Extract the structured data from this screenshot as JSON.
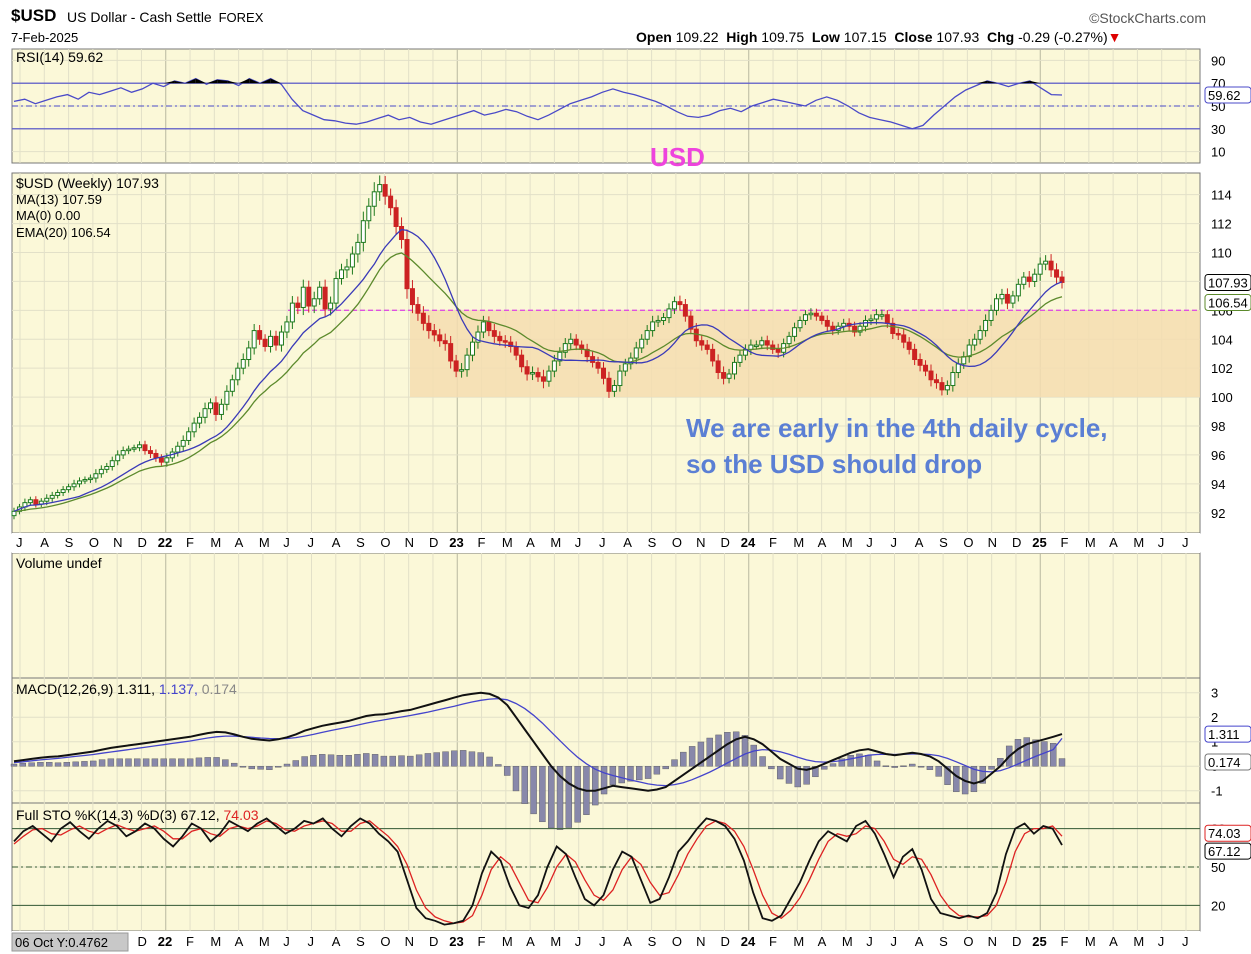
{
  "header": {
    "symbol": "$USD",
    "description": "US Dollar - Cash Settle",
    "exchange": "FOREX",
    "date": "7-Feb-2025",
    "brand": "©StockCharts.com",
    "open_label": "Open",
    "open": "109.22",
    "high_label": "High",
    "high": "109.75",
    "low_label": "Low",
    "low": "107.15",
    "close_label": "Close",
    "close": "107.93",
    "chg_label": "Chg",
    "chg": "-0.29 (-0.27%)"
  },
  "annotations": {
    "usd_label": "USD",
    "comment_line1": "We are early in the 4th daily cycle,",
    "comment_line2": "so the USD should drop",
    "usd_color": "#ee44dd",
    "comment_color": "#5b7fd4",
    "status_box": "06 Oct Y:0.4762"
  },
  "x_axis_labels": [
    "J",
    "A",
    "S",
    "O",
    "N",
    "D",
    "22",
    "F",
    "M",
    "A",
    "M",
    "J",
    "J",
    "A",
    "S",
    "O",
    "N",
    "D",
    "23",
    "F",
    "M",
    "A",
    "M",
    "J",
    "J",
    "A",
    "S",
    "O",
    "N",
    "D",
    "24",
    "F",
    "M",
    "A",
    "M",
    "J",
    "J",
    "A",
    "S",
    "O",
    "N",
    "D",
    "25",
    "F",
    "M",
    "A",
    "M",
    "J",
    "J"
  ],
  "bottom_axis_labels": [
    "D",
    "22",
    "F",
    "M",
    "A",
    "M",
    "J",
    "J",
    "A",
    "S",
    "O",
    "N",
    "D",
    "23",
    "F",
    "M",
    "A",
    "M",
    "J",
    "J",
    "A",
    "S",
    "O",
    "N",
    "D",
    "24",
    "F",
    "M",
    "A",
    "M",
    "J",
    "J",
    "A",
    "S",
    "O",
    "N",
    "D",
    "25",
    "F",
    "M",
    "A",
    "M",
    "J",
    "J"
  ],
  "colors": {
    "panel_bg": "#fbf8d8",
    "zone": "#f5ddb0",
    "price_up": "#1e7a1e",
    "price_down": "#cc2222",
    "ma13": "#3a3ab8",
    "ema20": "#5c8a2c",
    "rsi_line": "#4a4ac8",
    "sto_k": "#111111",
    "sto_d": "#dd2222",
    "macd_line": "#111111",
    "macd_signal": "#4444cc",
    "macd_hist": "#8888aa",
    "resistance": "#e050e0"
  },
  "chart_data": [
    {
      "type": "line",
      "title": "RSI(14) 59.62",
      "ylim": [
        0,
        100
      ],
      "yticks": [
        90,
        70,
        50,
        30,
        10
      ],
      "last_value_label": "59.62",
      "series": [
        {
          "name": "RSI(14)",
          "values": [
            54,
            56,
            52,
            55,
            58,
            60,
            56,
            62,
            60,
            63,
            66,
            62,
            65,
            70,
            67,
            72,
            70,
            74,
            69,
            73,
            72,
            68,
            74,
            70,
            74,
            69,
            56,
            46,
            42,
            38,
            37,
            35,
            34,
            36,
            39,
            42,
            38,
            40,
            36,
            34,
            37,
            40,
            43,
            46,
            42,
            44,
            47,
            45,
            41,
            38,
            42,
            47,
            52,
            55,
            58,
            62,
            65,
            62,
            60,
            57,
            54,
            50,
            45,
            41,
            40,
            42,
            46,
            48,
            45,
            50,
            53,
            56,
            54,
            52,
            50,
            55,
            58,
            55,
            50,
            44,
            40,
            38,
            36,
            33,
            30,
            33,
            42,
            50,
            58,
            64,
            68,
            72,
            70,
            67,
            70,
            72,
            66,
            60,
            59.62
          ]
        }
      ]
    },
    {
      "type": "candlestick",
      "title": "$USD (Weekly) 107.93",
      "ylim": [
        90.6,
        115.5
      ],
      "yticks": [
        92,
        94,
        96,
        98,
        100,
        102,
        104,
        106,
        108,
        110,
        112,
        114
      ],
      "legend": [
        "$USD (Weekly) 107.93",
        "MA(13) 107.59",
        "MA(0) 0.00",
        "EMA(20) 106.54"
      ],
      "last_price_label": "107.93",
      "ema_label": "106.54",
      "resistance_level": 106.0,
      "support_zone": [
        100.0,
        106.0
      ],
      "closes": [
        92.1,
        92.4,
        92.7,
        92.9,
        92.6,
        92.8,
        93.0,
        93.2,
        93.4,
        93.6,
        93.8,
        94.0,
        94.2,
        94.3,
        94.4,
        94.7,
        95.0,
        95.2,
        95.6,
        96.0,
        96.3,
        96.4,
        96.5,
        96.7,
        96.3,
        96.1,
        95.8,
        95.5,
        95.8,
        96.2,
        96.6,
        97.0,
        97.6,
        98.2,
        98.6,
        99.2,
        99.6,
        98.8,
        99.5,
        100.4,
        101.2,
        102.0,
        102.6,
        103.4,
        104.6,
        104.0,
        103.5,
        104.2,
        103.6,
        104.5,
        105.2,
        106.5,
        106.2,
        107.6,
        106.3,
        106.8,
        107.6,
        106.1,
        106.5,
        108.2,
        108.8,
        109.0,
        109.9,
        110.7,
        112.2,
        113.2,
        114.2,
        114.7,
        113.9,
        113.1,
        111.8,
        110.9,
        107.5,
        106.4,
        105.8,
        105.1,
        104.6,
        104.3,
        103.9,
        103.7,
        102.5,
        101.8,
        101.9,
        102.9,
        103.8,
        104.5,
        105.2,
        104.6,
        104.2,
        103.9,
        103.8,
        103.5,
        102.9,
        102.1,
        101.6,
        101.7,
        101.4,
        101.1,
        101.8,
        102.5,
        103.1,
        103.7,
        104.0,
        103.6,
        103.3,
        102.8,
        102.4,
        102.0,
        101.3,
        100.4,
        100.8,
        101.8,
        102.3,
        102.7,
        103.4,
        104.0,
        104.6,
        105.2,
        105.3,
        105.5,
        106.1,
        106.6,
        106.4,
        105.6,
        104.7,
        103.9,
        103.6,
        103.3,
        102.5,
        101.7,
        101.3,
        101.6,
        102.4,
        102.9,
        103.3,
        103.6,
        103.6,
        103.9,
        103.6,
        103.3,
        103.1,
        103.7,
        104.2,
        104.8,
        105.3,
        105.7,
        105.8,
        105.6,
        105.3,
        104.9,
        104.6,
        104.9,
        105.1,
        104.9,
        104.5,
        104.9,
        105.3,
        105.4,
        105.7,
        105.7,
        105.1,
        104.4,
        104.3,
        103.8,
        103.3,
        102.6,
        102.2,
        101.8,
        101.2,
        101.0,
        100.5,
        100.8,
        101.7,
        102.3,
        102.8,
        103.6,
        104.0,
        104.6,
        105.3,
        106.0,
        106.8,
        107.1,
        106.5,
        107.0,
        107.8,
        108.3,
        108.0,
        108.5,
        109.2,
        109.4,
        108.8,
        108.3,
        107.93
      ],
      "ranges": [
        0.7,
        0.6,
        0.8,
        0.6,
        0.7,
        0.6,
        0.8,
        0.7,
        0.6,
        0.7,
        0.6,
        0.8,
        0.7,
        0.6,
        0.7,
        0.9,
        0.8,
        0.7,
        0.8,
        0.9,
        0.8,
        0.7,
        0.6,
        0.7,
        0.8,
        0.9,
        0.8,
        0.7,
        0.9,
        0.8,
        0.9,
        1.0,
        0.9,
        1.1,
        1.0,
        1.2,
        0.9,
        1.3,
        1.1,
        1.2,
        1.0,
        1.1,
        1.2,
        1.4,
        1.3,
        1.1,
        1.0,
        1.2,
        1.1,
        1.3,
        1.2,
        1.4,
        1.3,
        1.5,
        1.3,
        1.4,
        1.2,
        1.5,
        1.3,
        1.4,
        1.2,
        1.6,
        1.5,
        1.7,
        1.8,
        1.6,
        1.9,
        1.8,
        1.7,
        1.5,
        1.6,
        1.8,
        2.0,
        1.7,
        1.5,
        1.4,
        1.6,
        1.3,
        1.2,
        1.4,
        1.5,
        1.2,
        1.3,
        1.4,
        1.2,
        1.3,
        1.2,
        1.1,
        1.3,
        1.0,
        1.1,
        1.2,
        1.0,
        1.1,
        1.3,
        1.2,
        1.0,
        1.4,
        1.1,
        1.2,
        1.0,
        1.1,
        1.2,
        1.0,
        0.9,
        1.1,
        1.0,
        1.1,
        1.2,
        1.3,
        1.1,
        1.2,
        1.0,
        1.1,
        1.2,
        1.0,
        1.1,
        1.2,
        1.0,
        0.9,
        1.1,
        1.0,
        1.2,
        1.1,
        1.0,
        1.2,
        1.1,
        1.0,
        1.1,
        1.3,
        1.2,
        1.0,
        1.1,
        0.9,
        1.0,
        1.1,
        0.9,
        0.8,
        1.0,
        0.9,
        1.1,
        1.0,
        0.9,
        1.0,
        0.8,
        0.9,
        1.0,
        0.9,
        0.8,
        1.0,
        0.9,
        0.8,
        0.9,
        1.0,
        0.9,
        0.8,
        1.0,
        0.9,
        1.1,
        1.0,
        0.9,
        1.1,
        1.0,
        1.2,
        1.0,
        1.1,
        1.2,
        1.0,
        1.3,
        1.2,
        1.1,
        1.0,
        1.2,
        1.1,
        1.0,
        1.2,
        1.1,
        1.0,
        1.2,
        1.1,
        1.0,
        1.1,
        1.2,
        1.0,
        1.1,
        1.0,
        1.2,
        1.1,
        1.3,
        1.2,
        1.4,
        1.3,
        1.2,
        1.1,
        1.0,
        2.6
      ]
    },
    {
      "type": "bar",
      "title": "Volume undef",
      "values": []
    },
    {
      "type": "line",
      "title": "MACD(12,26,9) 1.311, 1.137, 0.174",
      "title_parts": [
        "MACD(12,26,9) 1.311,",
        "1.137,",
        "0.174"
      ],
      "ylim": [
        -1.5,
        3.6
      ],
      "yticks": [
        3,
        2,
        1,
        0,
        -1
      ],
      "macd_label": "1.311",
      "hist_label": "0.174",
      "series": [
        {
          "name": "MACD",
          "values": [
            0.2,
            0.25,
            0.3,
            0.35,
            0.38,
            0.4,
            0.45,
            0.5,
            0.55,
            0.6,
            0.68,
            0.75,
            0.8,
            0.85,
            0.9,
            0.95,
            1.0,
            1.05,
            1.1,
            1.15,
            1.2,
            1.28,
            1.35,
            1.4,
            1.38,
            1.3,
            1.2,
            1.12,
            1.08,
            1.05,
            1.1,
            1.18,
            1.3,
            1.45,
            1.55,
            1.65,
            1.72,
            1.78,
            1.85,
            1.95,
            2.05,
            2.1,
            2.12,
            2.18,
            2.25,
            2.3,
            2.4,
            2.5,
            2.6,
            2.7,
            2.8,
            2.9,
            2.95,
            3.0,
            2.95,
            2.8,
            2.5,
            2.0,
            1.5,
            1.0,
            0.5,
            0.0,
            -0.4,
            -0.7,
            -0.9,
            -1.0,
            -1.0,
            -0.9,
            -0.8,
            -0.85,
            -0.9,
            -0.95,
            -1.0,
            -0.95,
            -0.85,
            -0.6,
            -0.35,
            -0.1,
            0.15,
            0.4,
            0.65,
            0.9,
            1.1,
            1.2,
            1.1,
            0.9,
            0.6,
            0.3,
            0.1,
            -0.1,
            -0.15,
            -0.05,
            0.1,
            0.25,
            0.4,
            0.55,
            0.65,
            0.7,
            0.6,
            0.5,
            0.45,
            0.5,
            0.55,
            0.5,
            0.4,
            0.2,
            -0.1,
            -0.4,
            -0.6,
            -0.7,
            -0.6,
            -0.3,
            0.0,
            0.4,
            0.7,
            0.9,
            1.0,
            1.1,
            1.2,
            1.311
          ]
        },
        {
          "name": "Signal",
          "values": [
            0.15,
            0.18,
            0.22,
            0.26,
            0.29,
            0.32,
            0.36,
            0.4,
            0.44,
            0.48,
            0.53,
            0.58,
            0.63,
            0.68,
            0.73,
            0.78,
            0.83,
            0.88,
            0.93,
            0.98,
            1.03,
            1.09,
            1.15,
            1.2,
            1.23,
            1.23,
            1.21,
            1.18,
            1.15,
            1.13,
            1.12,
            1.13,
            1.17,
            1.23,
            1.3,
            1.38,
            1.46,
            1.53,
            1.6,
            1.68,
            1.76,
            1.83,
            1.89,
            1.95,
            2.01,
            2.07,
            2.14,
            2.21,
            2.29,
            2.37,
            2.45,
            2.54,
            2.62,
            2.69,
            2.74,
            2.76,
            2.71,
            2.56,
            2.35,
            2.08,
            1.76,
            1.4,
            1.04,
            0.69,
            0.37,
            0.1,
            -0.12,
            -0.27,
            -0.38,
            -0.47,
            -0.56,
            -0.64,
            -0.72,
            -0.77,
            -0.79,
            -0.75,
            -0.67,
            -0.55,
            -0.4,
            -0.24,
            -0.06,
            0.13,
            0.32,
            0.5,
            0.62,
            0.68,
            0.66,
            0.59,
            0.49,
            0.37,
            0.26,
            0.19,
            0.17,
            0.19,
            0.23,
            0.3,
            0.37,
            0.45,
            0.48,
            0.49,
            0.48,
            0.49,
            0.5,
            0.5,
            0.48,
            0.43,
            0.32,
            0.18,
            0.03,
            -0.12,
            -0.21,
            -0.23,
            -0.18,
            -0.06,
            0.09,
            0.25,
            0.4,
            0.54,
            0.68,
            1.137
          ]
        }
      ]
    },
    {
      "type": "line",
      "title": "Full STO %K(14,3) %D(3) 67.12, 74.03",
      "title_parts": [
        "Full STO %K(14,3) %D(3) 67.12,",
        "74.03"
      ],
      "ylim": [
        0,
        100
      ],
      "yticks": [
        80,
        50,
        20
      ],
      "k_label": "67.12",
      "d_label": "74.03",
      "series": [
        {
          "name": "%K",
          "values": [
            70,
            78,
            82,
            76,
            70,
            80,
            85,
            78,
            72,
            80,
            86,
            82,
            74,
            78,
            84,
            80,
            72,
            66,
            74,
            84,
            80,
            70,
            76,
            86,
            82,
            78,
            84,
            88,
            82,
            76,
            80,
            86,
            84,
            88,
            80,
            74,
            82,
            88,
            84,
            76,
            70,
            62,
            40,
            18,
            10,
            8,
            5,
            6,
            8,
            20,
            45,
            62,
            55,
            35,
            20,
            18,
            28,
            50,
            66,
            60,
            42,
            25,
            20,
            28,
            48,
            62,
            58,
            40,
            22,
            25,
            42,
            62,
            70,
            80,
            88,
            86,
            82,
            72,
            55,
            30,
            10,
            8,
            12,
            25,
            38,
            55,
            70,
            78,
            74,
            70,
            82,
            86,
            76,
            60,
            42,
            58,
            64,
            48,
            25,
            14,
            12,
            10,
            12,
            10,
            14,
            30,
            60,
            80,
            84,
            76,
            82,
            80,
            67.12
          ]
        },
        {
          "name": "%D",
          "values": [
            68,
            74,
            79,
            80,
            76,
            75,
            79,
            82,
            78,
            76,
            80,
            83,
            80,
            78,
            80,
            82,
            78,
            72,
            72,
            78,
            80,
            76,
            74,
            80,
            82,
            80,
            82,
            86,
            84,
            79,
            78,
            82,
            84,
            86,
            84,
            78,
            78,
            84,
            86,
            80,
            74,
            66,
            52,
            32,
            18,
            11,
            8,
            6,
            7,
            12,
            28,
            48,
            58,
            52,
            38,
            24,
            22,
            34,
            50,
            60,
            54,
            40,
            28,
            24,
            32,
            48,
            58,
            52,
            38,
            28,
            30,
            44,
            60,
            72,
            82,
            86,
            84,
            78,
            66,
            48,
            28,
            14,
            10,
            16,
            26,
            40,
            56,
            70,
            76,
            74,
            76,
            82,
            80,
            70,
            56,
            52,
            58,
            56,
            44,
            28,
            18,
            12,
            11,
            11,
            12,
            20,
            38,
            62,
            76,
            80,
            80,
            82,
            74.03
          ]
        }
      ]
    }
  ]
}
